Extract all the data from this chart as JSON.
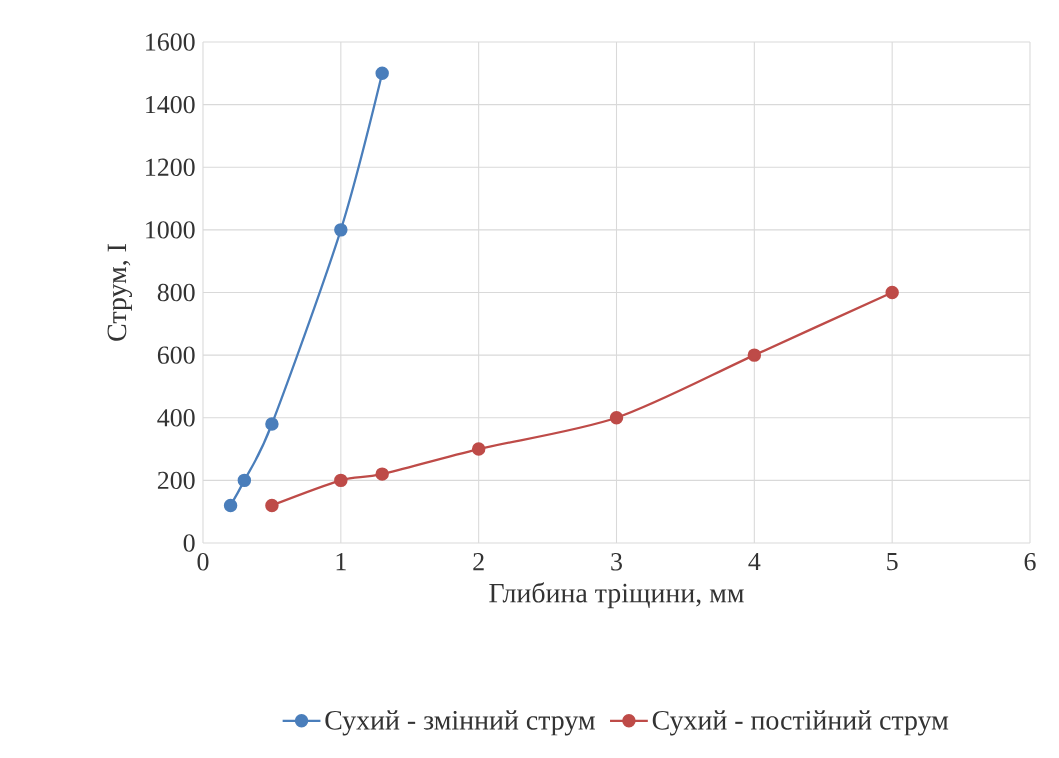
{
  "chart_data": {
    "type": "line",
    "xlabel": "Глибина тріщини, мм",
    "ylabel": "Струм, I",
    "series": [
      {
        "name": "Сухий - змінний струм",
        "color": "#4a7ebb",
        "x": [
          0.2,
          0.3,
          0.5,
          1,
          1.3
        ],
        "values": [
          120,
          200,
          380,
          1000,
          1500
        ]
      },
      {
        "name": "Сухий - постійний струм",
        "color": "#be4b48",
        "x": [
          0.5,
          1,
          1.3,
          2,
          3,
          4,
          5
        ],
        "values": [
          120,
          200,
          220,
          300,
          400,
          600,
          800
        ]
      }
    ],
    "xlim": [
      0,
      6
    ],
    "xticks": [
      0,
      1,
      2,
      3,
      4,
      5,
      6
    ],
    "ylim": [
      0,
      1600
    ],
    "yticks": [
      0,
      200,
      400,
      600,
      800,
      1000,
      1200,
      1400,
      1600
    ],
    "grid": true,
    "legend": "bottom",
    "marker": "circle",
    "line_style": "solid"
  }
}
